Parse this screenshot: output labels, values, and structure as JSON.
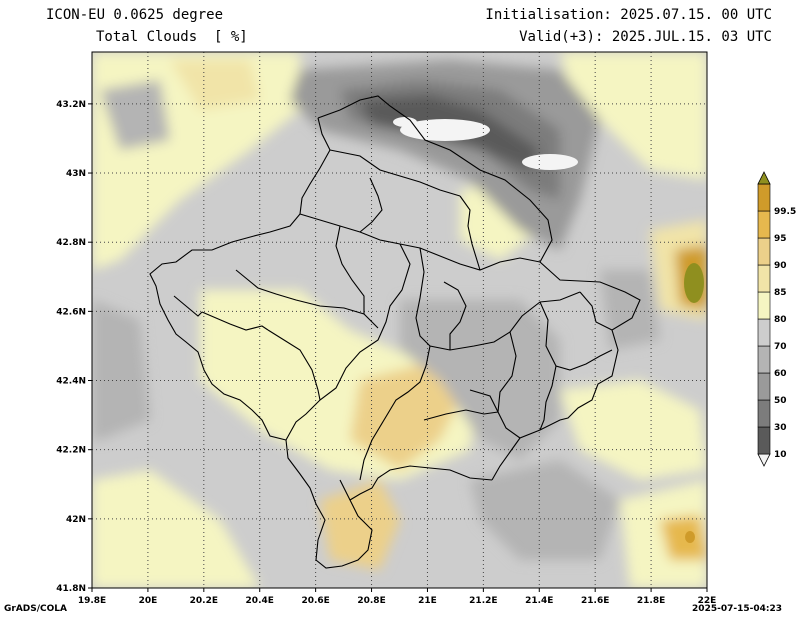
{
  "header": {
    "title": "ICON-EU 0.0625 degree",
    "subtitle": "Total Clouds  [ %]",
    "initialisation": "Initialisation: 2025.07.15. 00 UTC",
    "valid": "Valid(+3): 2025.JUL.15. 03 UTC"
  },
  "chart_data": {
    "type": "heatmap",
    "x_ticks": [
      "19.8E",
      "20E",
      "20.2E",
      "20.4E",
      "20.6E",
      "20.8E",
      "21E",
      "21.2E",
      "21.4E",
      "21.6E",
      "21.8E",
      "22E"
    ],
    "y_ticks": [
      "43.2N",
      "43N",
      "42.8N",
      "42.6N",
      "42.4N",
      "42.2N",
      "42N",
      "41.8N"
    ],
    "xlim": [
      19.8,
      22.0
    ],
    "ylim": [
      41.8,
      43.35
    ],
    "grid": true,
    "colorbar": {
      "labels": [
        "10",
        "30",
        "50",
        "60",
        "70",
        "80",
        "85",
        "90",
        "95",
        "99.5"
      ],
      "colors": [
        "#f4f4f4",
        "#5a5a5a",
        "#7c7c7c",
        "#9a9a9a",
        "#b4b4b4",
        "#cdcdcd",
        "#f5f5c2",
        "#f1e4a8",
        "#ecd08a",
        "#e6b84e",
        "#cf9b2a",
        "#8f8f1f"
      ]
    }
  },
  "footer": {
    "credit": "GrADS/COLA",
    "timestamp": "2025-07-15-04:23"
  }
}
